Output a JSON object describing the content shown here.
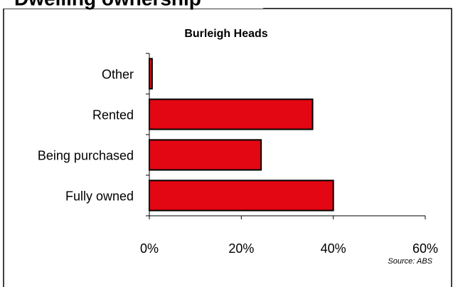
{
  "chart_data": {
    "type": "bar",
    "orientation": "horizontal",
    "title": "Dwelling ownership",
    "subtitle": "Burleigh Heads",
    "categories": [
      "Other",
      "Rented",
      "Being purchased",
      "Fully owned"
    ],
    "values": [
      0.6,
      35.5,
      24.3,
      40.0
    ],
    "color": "#e30613",
    "xlim": [
      0,
      60
    ],
    "xticks": [
      {
        "value": 0,
        "label": "0%"
      },
      {
        "value": 20,
        "label": "20%"
      },
      {
        "value": 40,
        "label": "40%"
      },
      {
        "value": 60,
        "label": "60%"
      }
    ],
    "source": "Source: ABS"
  }
}
